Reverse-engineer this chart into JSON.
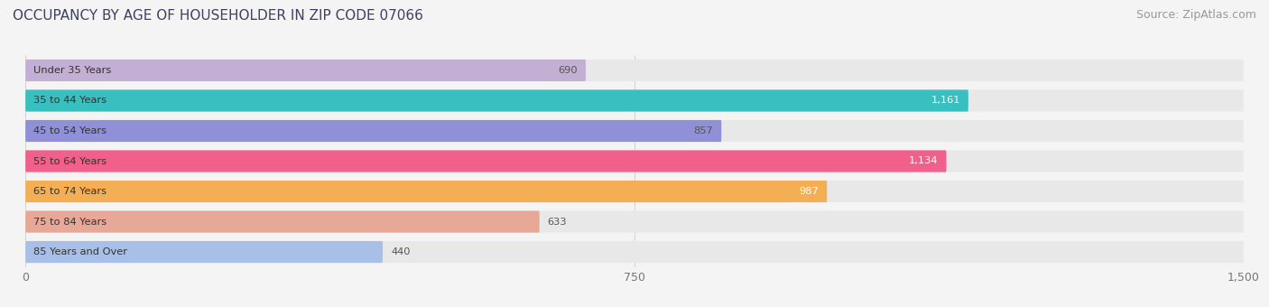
{
  "title": "OCCUPANCY BY AGE OF HOUSEHOLDER IN ZIP CODE 07066",
  "source": "Source: ZipAtlas.com",
  "categories": [
    "Under 35 Years",
    "35 to 44 Years",
    "45 to 54 Years",
    "55 to 64 Years",
    "65 to 74 Years",
    "75 to 84 Years",
    "85 Years and Over"
  ],
  "values": [
    690,
    1161,
    857,
    1134,
    987,
    633,
    440
  ],
  "bar_colors": [
    "#c4afd4",
    "#38bfbf",
    "#9090d8",
    "#f0608a",
    "#f4af55",
    "#e8a898",
    "#a8c0e8"
  ],
  "label_colors": [
    "#555555",
    "#ffffff",
    "#555555",
    "#ffffff",
    "#ffffff",
    "#555555",
    "#555555"
  ],
  "value_inside": [
    true,
    true,
    true,
    true,
    true,
    false,
    false
  ],
  "xlim": [
    0,
    1500
  ],
  "xticks": [
    0,
    750,
    1500
  ],
  "title_color": "#404060",
  "title_fontsize": 11,
  "source_fontsize": 9,
  "background_color": "#f4f4f4",
  "bar_background_color": "#e8e8e8",
  "bar_height": 0.72
}
